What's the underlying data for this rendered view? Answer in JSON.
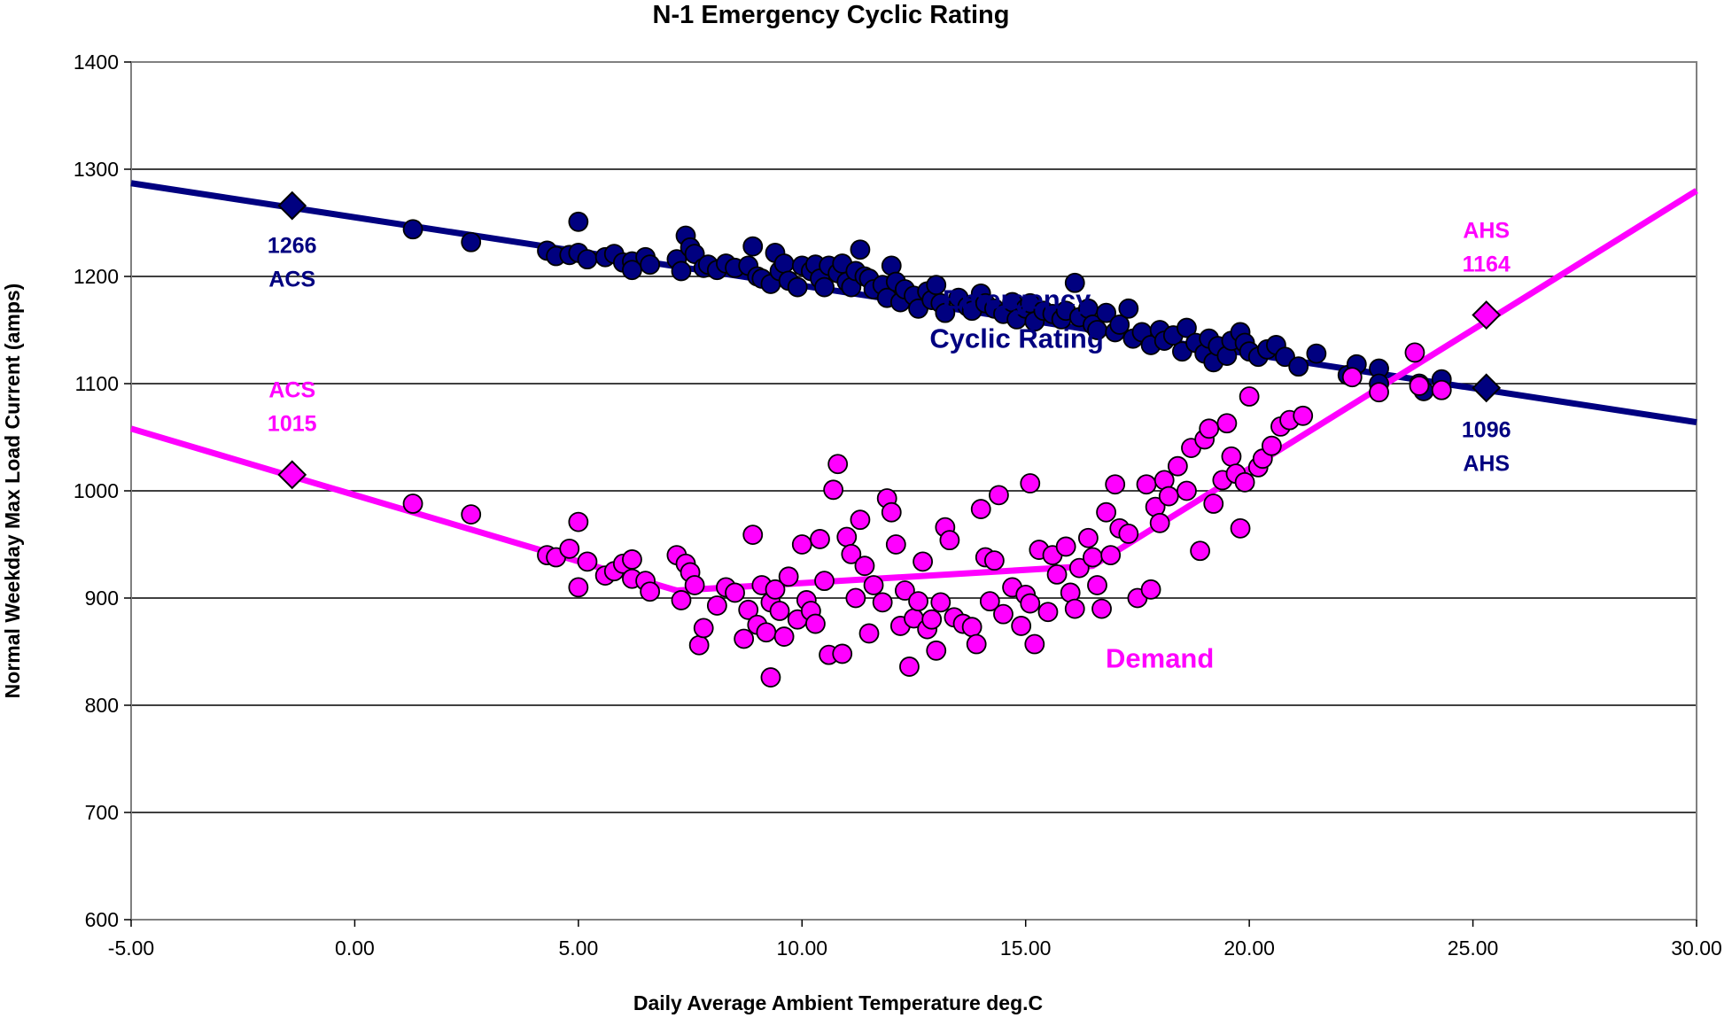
{
  "chart_data": {
    "type": "scatter",
    "title": "N-1 Emergency Cyclic Rating",
    "xlabel": "Daily Average Ambient Temperature deg.C",
    "ylabel": "Normal Weekday Max Load Current (amps)",
    "xlim": [
      -5,
      30
    ],
    "ylim": [
      600,
      1400
    ],
    "x_ticks": [
      "-5.00",
      "0.00",
      "5.00",
      "10.00",
      "15.00",
      "20.00",
      "25.00",
      "30.00"
    ],
    "y_ticks": [
      "600",
      "700",
      "800",
      "900",
      "1000",
      "1100",
      "1200",
      "1300",
      "1400"
    ],
    "grid": "horizontal",
    "legend": "none",
    "colors": {
      "rating": "#000080",
      "demand": "#ff00ff",
      "marker_outline": "#000000",
      "gridline": "#000000"
    },
    "lines": [
      {
        "name": "Emergency Cyclic Rating trend",
        "color": "#000080",
        "x": [
          -5,
          30
        ],
        "y": [
          1287,
          1064
        ]
      },
      {
        "name": "Demand trend",
        "color": "#ff00ff",
        "x": [
          -5,
          7.2,
          16.5,
          30
        ],
        "y": [
          1058,
          907,
          930,
          1280
        ]
      }
    ],
    "diamonds": [
      {
        "x": -1.4,
        "y": 1266,
        "color": "#000080"
      },
      {
        "x": 25.3,
        "y": 1096,
        "color": "#000080"
      },
      {
        "x": -1.4,
        "y": 1015,
        "color": "#ff00ff"
      },
      {
        "x": 25.3,
        "y": 1164,
        "color": "#ff00ff"
      }
    ],
    "annotations": [
      {
        "lines": [
          "Emergency",
          "Cyclic Rating"
        ],
        "x": 14.8,
        "y": 1170,
        "color": "#000080",
        "size": "big"
      },
      {
        "lines": [
          "1266",
          "ACS"
        ],
        "x": -1.4,
        "y": 1222,
        "color": "#000080",
        "size": "normal"
      },
      {
        "lines": [
          "1096",
          "AHS"
        ],
        "x": 25.3,
        "y": 1050,
        "color": "#000080",
        "size": "normal"
      },
      {
        "lines": [
          "ACS",
          "1015"
        ],
        "x": -1.4,
        "y": 1087,
        "color": "#ff00ff",
        "size": "normal"
      },
      {
        "lines": [
          "AHS",
          "1164"
        ],
        "x": 25.3,
        "y": 1236,
        "color": "#ff00ff",
        "size": "normal"
      },
      {
        "lines": [
          "Demand"
        ],
        "x": 18,
        "y": 835,
        "color": "#ff00ff",
        "size": "big"
      }
    ],
    "series": [
      {
        "name": "Emergency Cyclic Rating",
        "color": "#000080",
        "points": [
          [
            1.3,
            1244
          ],
          [
            2.6,
            1232
          ],
          [
            4.3,
            1224
          ],
          [
            4.5,
            1219
          ],
          [
            4.8,
            1220
          ],
          [
            5.0,
            1222
          ],
          [
            5.0,
            1251
          ],
          [
            5.2,
            1216
          ],
          [
            5.6,
            1218
          ],
          [
            5.8,
            1221
          ],
          [
            6.0,
            1213
          ],
          [
            6.2,
            1214
          ],
          [
            6.2,
            1206
          ],
          [
            6.5,
            1218
          ],
          [
            6.6,
            1211
          ],
          [
            7.2,
            1216
          ],
          [
            7.3,
            1205
          ],
          [
            7.4,
            1238
          ],
          [
            7.5,
            1227
          ],
          [
            7.6,
            1221
          ],
          [
            7.8,
            1208
          ],
          [
            7.9,
            1211
          ],
          [
            8.1,
            1206
          ],
          [
            8.3,
            1212
          ],
          [
            8.5,
            1208
          ],
          [
            8.8,
            1210
          ],
          [
            8.9,
            1228
          ],
          [
            9.0,
            1200
          ],
          [
            9.1,
            1198
          ],
          [
            9.3,
            1193
          ],
          [
            9.4,
            1222
          ],
          [
            9.5,
            1205
          ],
          [
            9.6,
            1212
          ],
          [
            9.7,
            1196
          ],
          [
            9.9,
            1190
          ],
          [
            10.0,
            1210
          ],
          [
            10.2,
            1205
          ],
          [
            10.3,
            1211
          ],
          [
            10.4,
            1198
          ],
          [
            10.5,
            1190
          ],
          [
            10.6,
            1210
          ],
          [
            10.8,
            1203
          ],
          [
            10.9,
            1212
          ],
          [
            11.0,
            1195
          ],
          [
            11.1,
            1190
          ],
          [
            11.2,
            1205
          ],
          [
            11.3,
            1225
          ],
          [
            11.4,
            1200
          ],
          [
            11.5,
            1198
          ],
          [
            11.6,
            1188
          ],
          [
            11.8,
            1192
          ],
          [
            11.9,
            1180
          ],
          [
            12.0,
            1210
          ],
          [
            12.1,
            1195
          ],
          [
            12.2,
            1176
          ],
          [
            12.3,
            1188
          ],
          [
            12.5,
            1182
          ],
          [
            12.6,
            1170
          ],
          [
            12.8,
            1186
          ],
          [
            12.9,
            1178
          ],
          [
            13.0,
            1192
          ],
          [
            13.1,
            1175
          ],
          [
            13.2,
            1166
          ],
          [
            13.5,
            1180
          ],
          [
            13.7,
            1172
          ],
          [
            13.8,
            1168
          ],
          [
            14.0,
            1184
          ],
          [
            14.1,
            1175
          ],
          [
            14.3,
            1170
          ],
          [
            14.5,
            1165
          ],
          [
            14.7,
            1176
          ],
          [
            14.8,
            1160
          ],
          [
            15.0,
            1170
          ],
          [
            15.1,
            1175
          ],
          [
            15.2,
            1158
          ],
          [
            15.4,
            1168
          ],
          [
            15.6,
            1165
          ],
          [
            15.8,
            1160
          ],
          [
            15.9,
            1168
          ],
          [
            16.1,
            1194
          ],
          [
            16.2,
            1162
          ],
          [
            16.4,
            1170
          ],
          [
            16.5,
            1155
          ],
          [
            16.6,
            1150
          ],
          [
            16.8,
            1166
          ],
          [
            17.0,
            1148
          ],
          [
            17.1,
            1155
          ],
          [
            17.3,
            1170
          ],
          [
            17.4,
            1142
          ],
          [
            17.6,
            1148
          ],
          [
            17.8,
            1136
          ],
          [
            18.0,
            1150
          ],
          [
            18.1,
            1140
          ],
          [
            18.3,
            1145
          ],
          [
            18.5,
            1130
          ],
          [
            18.6,
            1152
          ],
          [
            18.8,
            1138
          ],
          [
            19.0,
            1128
          ],
          [
            19.1,
            1142
          ],
          [
            19.2,
            1120
          ],
          [
            19.3,
            1135
          ],
          [
            19.5,
            1126
          ],
          [
            19.6,
            1140
          ],
          [
            19.8,
            1148
          ],
          [
            19.9,
            1138
          ],
          [
            20.0,
            1130
          ],
          [
            20.2,
            1125
          ],
          [
            20.4,
            1132
          ],
          [
            20.6,
            1136
          ],
          [
            20.8,
            1125
          ],
          [
            21.1,
            1116
          ],
          [
            21.5,
            1128
          ],
          [
            22.2,
            1108
          ],
          [
            22.4,
            1118
          ],
          [
            22.9,
            1114
          ],
          [
            22.9,
            1100
          ],
          [
            23.8,
            1100
          ],
          [
            23.9,
            1093
          ],
          [
            24.3,
            1104
          ]
        ]
      },
      {
        "name": "Demand",
        "color": "#ff00ff",
        "points": [
          [
            1.3,
            988
          ],
          [
            2.6,
            978
          ],
          [
            4.3,
            940
          ],
          [
            4.5,
            938
          ],
          [
            4.8,
            946
          ],
          [
            5.0,
            910
          ],
          [
            5.0,
            971
          ],
          [
            5.2,
            934
          ],
          [
            5.6,
            921
          ],
          [
            5.8,
            925
          ],
          [
            6.0,
            932
          ],
          [
            6.2,
            918
          ],
          [
            6.2,
            936
          ],
          [
            6.5,
            916
          ],
          [
            6.6,
            906
          ],
          [
            7.2,
            940
          ],
          [
            7.3,
            898
          ],
          [
            7.4,
            932
          ],
          [
            7.5,
            924
          ],
          [
            7.6,
            912
          ],
          [
            7.7,
            856
          ],
          [
            7.8,
            872
          ],
          [
            8.1,
            893
          ],
          [
            8.3,
            910
          ],
          [
            8.5,
            905
          ],
          [
            8.7,
            862
          ],
          [
            8.8,
            889
          ],
          [
            8.9,
            959
          ],
          [
            9.0,
            875
          ],
          [
            9.1,
            912
          ],
          [
            9.2,
            868
          ],
          [
            9.3,
            826
          ],
          [
            9.3,
            896
          ],
          [
            9.4,
            908
          ],
          [
            9.5,
            888
          ],
          [
            9.6,
            864
          ],
          [
            9.7,
            920
          ],
          [
            9.9,
            880
          ],
          [
            10.0,
            950
          ],
          [
            10.1,
            898
          ],
          [
            10.2,
            888
          ],
          [
            10.3,
            876
          ],
          [
            10.4,
            955
          ],
          [
            10.5,
            916
          ],
          [
            10.6,
            847
          ],
          [
            10.7,
            1001
          ],
          [
            10.8,
            1025
          ],
          [
            10.9,
            848
          ],
          [
            11.0,
            957
          ],
          [
            11.1,
            941
          ],
          [
            11.2,
            900
          ],
          [
            11.3,
            973
          ],
          [
            11.4,
            930
          ],
          [
            11.5,
            867
          ],
          [
            11.6,
            912
          ],
          [
            11.8,
            896
          ],
          [
            11.9,
            993
          ],
          [
            12.0,
            980
          ],
          [
            12.1,
            950
          ],
          [
            12.2,
            874
          ],
          [
            12.3,
            907
          ],
          [
            12.4,
            836
          ],
          [
            12.5,
            881
          ],
          [
            12.6,
            897
          ],
          [
            12.7,
            934
          ],
          [
            12.8,
            871
          ],
          [
            12.9,
            880
          ],
          [
            13.0,
            851
          ],
          [
            13.1,
            896
          ],
          [
            13.2,
            966
          ],
          [
            13.3,
            954
          ],
          [
            13.4,
            882
          ],
          [
            13.6,
            876
          ],
          [
            13.8,
            873
          ],
          [
            13.9,
            857
          ],
          [
            14.0,
            983
          ],
          [
            14.1,
            938
          ],
          [
            14.2,
            897
          ],
          [
            14.3,
            935
          ],
          [
            14.4,
            996
          ],
          [
            14.5,
            885
          ],
          [
            14.7,
            910
          ],
          [
            14.9,
            874
          ],
          [
            15.0,
            903
          ],
          [
            15.1,
            1007
          ],
          [
            15.1,
            895
          ],
          [
            15.2,
            857
          ],
          [
            15.3,
            945
          ],
          [
            15.5,
            887
          ],
          [
            15.6,
            940
          ],
          [
            15.7,
            922
          ],
          [
            15.9,
            948
          ],
          [
            16.0,
            905
          ],
          [
            16.1,
            890
          ],
          [
            16.2,
            928
          ],
          [
            16.4,
            956
          ],
          [
            16.5,
            938
          ],
          [
            16.6,
            912
          ],
          [
            16.7,
            890
          ],
          [
            16.8,
            980
          ],
          [
            16.9,
            940
          ],
          [
            17.0,
            1006
          ],
          [
            17.1,
            965
          ],
          [
            17.3,
            960
          ],
          [
            17.5,
            900
          ],
          [
            17.7,
            1006
          ],
          [
            17.8,
            908
          ],
          [
            17.9,
            985
          ],
          [
            18.0,
            970
          ],
          [
            18.1,
            1010
          ],
          [
            18.2,
            995
          ],
          [
            18.4,
            1023
          ],
          [
            18.6,
            1000
          ],
          [
            18.7,
            1040
          ],
          [
            18.9,
            944
          ],
          [
            19.0,
            1048
          ],
          [
            19.1,
            1058
          ],
          [
            19.2,
            988
          ],
          [
            19.4,
            1010
          ],
          [
            19.5,
            1063
          ],
          [
            19.6,
            1032
          ],
          [
            19.7,
            1016
          ],
          [
            19.8,
            965
          ],
          [
            19.9,
            1008
          ],
          [
            20.0,
            1088
          ],
          [
            20.2,
            1022
          ],
          [
            20.3,
            1030
          ],
          [
            20.5,
            1042
          ],
          [
            20.7,
            1060
          ],
          [
            20.9,
            1066
          ],
          [
            21.2,
            1070
          ],
          [
            22.3,
            1106
          ],
          [
            22.9,
            1092
          ],
          [
            23.7,
            1129
          ],
          [
            23.8,
            1098
          ],
          [
            24.3,
            1094
          ]
        ]
      }
    ]
  }
}
